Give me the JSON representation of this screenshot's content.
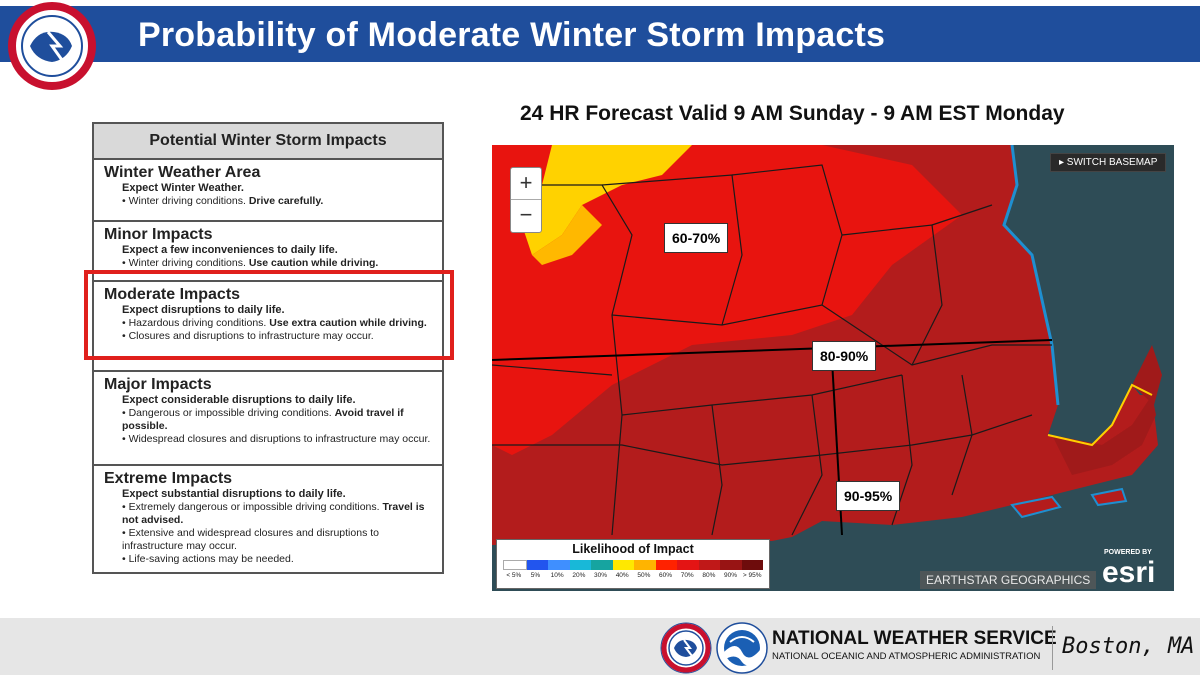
{
  "header": {
    "title": "Probability of Moderate Winter Storm Impacts",
    "logo_text": "NATIONAL WEATHER SERVICE"
  },
  "impacts_table": {
    "heading": "Potential Winter Storm Impacts",
    "sections": [
      {
        "title": "Winter Weather Area",
        "expect": "Expect Winter Weather.",
        "bullets": [
          {
            "plain": "Winter driving conditions. ",
            "bold": "Drive carefully."
          }
        ]
      },
      {
        "title": "Minor Impacts",
        "expect": "Expect a few inconveniences to daily life.",
        "bullets": [
          {
            "plain": "Winter driving conditions. ",
            "bold": "Use caution while driving."
          }
        ]
      },
      {
        "title": "Moderate Impacts",
        "expect": "Expect disruptions to daily life.",
        "bullets": [
          {
            "plain": "Hazardous driving conditions. ",
            "bold": "Use extra caution while driving."
          },
          {
            "plain": "Closures and disruptions to infrastructure may occur.",
            "bold": ""
          }
        ]
      },
      {
        "title": "Major Impacts",
        "expect": "Expect considerable disruptions to daily life.",
        "bullets": [
          {
            "plain": "Dangerous or impossible driving conditions. ",
            "bold": "Avoid travel if possible."
          },
          {
            "plain": "Widespread closures and disruptions to infrastructure may occur.",
            "bold": ""
          }
        ]
      },
      {
        "title": "Extreme Impacts",
        "expect": "Expect substantial disruptions to daily life.",
        "bullets": [
          {
            "plain": "Extremely dangerous or impossible driving conditions. ",
            "bold": "Travel is not advised."
          },
          {
            "plain": "Extensive and widespread closures and disruptions to infrastructure may occur.",
            "bold": ""
          },
          {
            "plain": "Life-saving actions may be needed.",
            "bold": ""
          }
        ]
      }
    ]
  },
  "map": {
    "subtitle": "24 HR Forecast Valid 9 AM Sunday - 9 AM EST Monday",
    "zoom_in": "+",
    "zoom_out": "−",
    "switch_basemap": "▸ SWITCH BASEMAP",
    "labels": [
      "60-70%",
      "80-90%",
      "90-95%"
    ],
    "attribution": "EARTHSTAR GEOGRAPHICS",
    "powered_by": "POWERED BY",
    "esri": "esri",
    "legend": {
      "title": "Likelihood of Impact",
      "ticks": [
        "< 5%",
        "5%",
        "10%",
        "20%",
        "30%",
        "40%",
        "50%",
        "60%",
        "70%",
        "80%",
        "90%",
        "> 95%"
      ],
      "colors": [
        "#ffffff",
        "#2255ee",
        "#3f8fff",
        "#18b8d8",
        "#16a4a0",
        "#ffe800",
        "#ffb400",
        "#ff2200",
        "#e41414",
        "#c01818",
        "#981414",
        "#6e0c0c"
      ]
    }
  },
  "footer": {
    "agency": "NATIONAL WEATHER SERVICE",
    "parent": "NATIONAL OCEANIC AND ATMOSPHERIC ADMINISTRATION",
    "office": "Boston, MA"
  }
}
